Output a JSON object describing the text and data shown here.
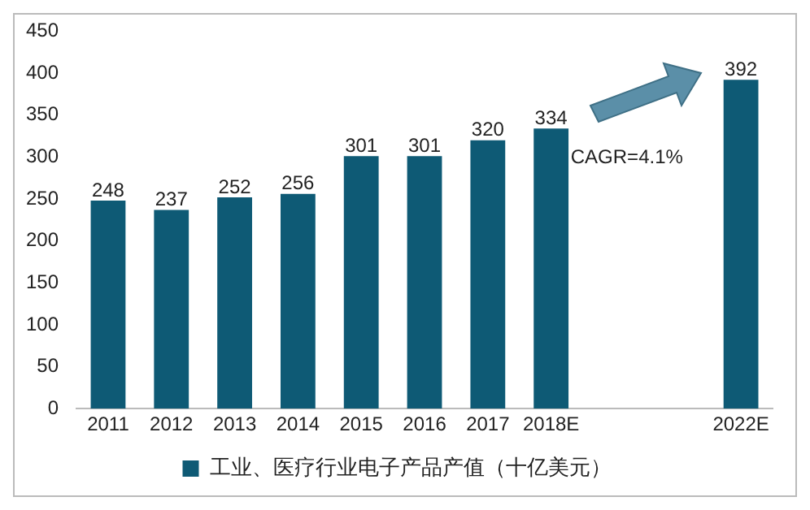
{
  "chart_data": {
    "type": "bar",
    "categories": [
      "2011",
      "2012",
      "2013",
      "2014",
      "2015",
      "2016",
      "2017",
      "2018E",
      null,
      null,
      "2022E"
    ],
    "series": [
      {
        "name": "工业、医疗行业电子产品产值（十亿美元）",
        "color": "#0e5a75",
        "values": [
          248,
          237,
          252,
          256,
          301,
          301,
          320,
          334,
          null,
          null,
          392
        ]
      }
    ],
    "ylim": [
      0,
      450
    ],
    "yticks": [
      0,
      50,
      100,
      150,
      200,
      250,
      300,
      350,
      400,
      450
    ],
    "grid": false,
    "legend": "bottom",
    "data_labels": true,
    "annotations": [
      "CAGR=4.1%"
    ]
  }
}
